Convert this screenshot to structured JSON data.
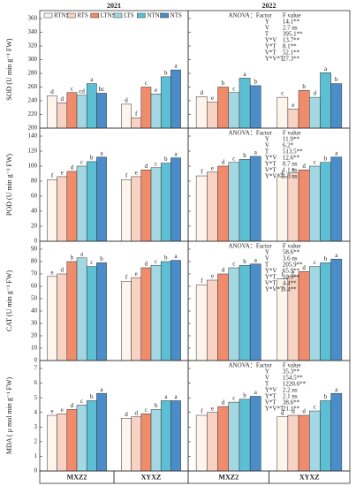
{
  "chart_data": [
    {
      "type": "bar",
      "title": "2021",
      "ylabel": "SOD (U min g⁻¹ FW)",
      "ylim": [
        200,
        360
      ],
      "yticks": [
        200,
        220,
        240,
        260,
        280,
        300,
        320,
        340,
        360
      ],
      "series": [
        {
          "name": "RTNS",
          "color": "#fdf4ec",
          "values": [
            247,
            235
          ],
          "letters": [
            "d",
            "d"
          ]
        },
        {
          "name": "RTS",
          "color": "#f8d2c2",
          "values": [
            237,
            215
          ],
          "letters": [
            "d",
            "f"
          ]
        },
        {
          "name": "LTNS",
          "color": "#f08b6c",
          "values": [
            252,
            260
          ],
          "letters": [
            "c",
            "c"
          ]
        },
        {
          "name": "LTS",
          "color": "#a3d8e2",
          "values": [
            248,
            250
          ],
          "letters": [
            "cd",
            "e"
          ]
        },
        {
          "name": "NTNS",
          "color": "#5cbfd3",
          "values": [
            265,
            275
          ],
          "letters": [
            "a",
            "b"
          ]
        },
        {
          "name": "NTS",
          "color": "#4a8dc8",
          "values": [
            251,
            285
          ],
          "letters": [
            "bc",
            "a"
          ]
        }
      ]
    },
    {
      "type": "bar",
      "title": "2022",
      "ylim": [
        200,
        360
      ],
      "yticks": [
        200,
        220,
        240,
        260,
        280,
        300,
        320,
        340,
        360
      ],
      "series": [
        {
          "color": "#fdf4ec",
          "values": [
            246,
            245
          ],
          "letters": [
            "d",
            "c"
          ]
        },
        {
          "color": "#f8d2c2",
          "values": [
            238,
            228
          ],
          "letters": [
            "e",
            "e"
          ]
        },
        {
          "color": "#f08b6c",
          "values": [
            260,
            255
          ],
          "letters": [
            "b",
            "b"
          ]
        },
        {
          "color": "#a3d8e2",
          "values": [
            252,
            245
          ],
          "letters": [
            "c",
            "d"
          ]
        },
        {
          "color": "#5cbfd3",
          "values": [
            273,
            281
          ],
          "letters": [
            "a",
            "a"
          ]
        },
        {
          "color": "#4a8dc8",
          "values": [
            262,
            265
          ],
          "letters": [
            "b",
            "b"
          ]
        }
      ],
      "anova": {
        "title": "ANOVA：",
        "header": [
          "Factor",
          "F value"
        ],
        "rows": [
          [
            "Y",
            "14.1**"
          ],
          [
            "V",
            "2.7 ns"
          ],
          [
            "T",
            "395.1**"
          ],
          [
            "Y*V",
            "13.7**"
          ],
          [
            "Y*T",
            "8.1**"
          ],
          [
            "V*T",
            "52.1**"
          ],
          [
            "Y*V*T",
            "27.3**"
          ]
        ]
      }
    },
    {
      "type": "bar",
      "ylabel": "POD (U min g⁻¹ FW)",
      "ylim": [
        0,
        140
      ],
      "yticks": [
        0,
        20,
        40,
        60,
        80,
        100,
        120,
        140
      ],
      "series": [
        {
          "color": "#fdf4ec",
          "values": [
            82,
            82
          ],
          "letters": [
            "f",
            "f"
          ]
        },
        {
          "color": "#f8d2c2",
          "values": [
            86,
            86
          ],
          "letters": [
            "e",
            "e"
          ]
        },
        {
          "color": "#f08b6c",
          "values": [
            93,
            95
          ],
          "letters": [
            "d",
            "d"
          ]
        },
        {
          "color": "#a3d8e2",
          "values": [
            100,
            98
          ],
          "letters": [
            "c",
            "c"
          ]
        },
        {
          "color": "#5cbfd3",
          "values": [
            106,
            104
          ],
          "letters": [
            "b",
            "b"
          ]
        },
        {
          "color": "#4a8dc8",
          "values": [
            112,
            111
          ],
          "letters": [
            "a",
            "a"
          ]
        }
      ]
    },
    {
      "type": "bar",
      "ylim": [
        0,
        140
      ],
      "yticks": [
        0,
        20,
        40,
        60,
        80,
        100,
        120,
        140
      ],
      "series": [
        {
          "color": "#fdf4ec",
          "values": [
            87,
            86
          ],
          "letters": [
            "f",
            "f"
          ]
        },
        {
          "color": "#f8d2c2",
          "values": [
            92,
            91
          ],
          "letters": [
            "e",
            "e"
          ]
        },
        {
          "color": "#f08b6c",
          "values": [
            100,
            95
          ],
          "letters": [
            "d",
            "d"
          ]
        },
        {
          "color": "#a3d8e2",
          "values": [
            105,
            100
          ],
          "letters": [
            "c",
            "c"
          ]
        },
        {
          "color": "#5cbfd3",
          "values": [
            109,
            105
          ],
          "letters": [
            "b",
            "b"
          ]
        },
        {
          "color": "#4a8dc8",
          "values": [
            113,
            112
          ],
          "letters": [
            "a",
            "a"
          ]
        }
      ],
      "anova": {
        "title": "ANOVA：",
        "header": [
          "Factor",
          "F value"
        ],
        "rows": [
          [
            "Y",
            "11.9**"
          ],
          [
            "V",
            "6.2*"
          ],
          [
            "T",
            "513.5**"
          ],
          [
            "Y*V",
            "12.6**"
          ],
          [
            "Y*T",
            "0.7 ns"
          ],
          [
            "V*T",
            "1.1 ns"
          ],
          [
            "Y*V*T",
            "1.3 ns"
          ]
        ]
      }
    },
    {
      "type": "bar",
      "ylabel": "CAT (U min g⁻¹ FW)",
      "ylim": [
        0,
        90
      ],
      "yticks": [
        0,
        10,
        20,
        30,
        40,
        50,
        60,
        70,
        80,
        90
      ],
      "series": [
        {
          "color": "#fdf4ec",
          "values": [
            68,
            64
          ],
          "letters": [
            "e",
            "f"
          ]
        },
        {
          "color": "#f8d2c2",
          "values": [
            70,
            67
          ],
          "letters": [
            "d",
            "e"
          ]
        },
        {
          "color": "#f08b6c",
          "values": [
            80,
            75
          ],
          "letters": [
            "b",
            "d"
          ]
        },
        {
          "color": "#a3d8e2",
          "values": [
            83,
            77
          ],
          "letters": [
            "a",
            "c"
          ]
        },
        {
          "color": "#5cbfd3",
          "values": [
            76,
            80
          ],
          "letters": [
            "c",
            "b"
          ]
        },
        {
          "color": "#4a8dc8",
          "values": [
            79,
            81
          ],
          "letters": [
            "b",
            "a"
          ]
        }
      ]
    },
    {
      "type": "bar",
      "ylim": [
        0,
        90
      ],
      "yticks": [
        0,
        10,
        20,
        30,
        40,
        50,
        60,
        70,
        80,
        90
      ],
      "series": [
        {
          "color": "#fdf4ec",
          "values": [
            61,
            66
          ],
          "letters": [
            "f",
            "f"
          ]
        },
        {
          "color": "#f8d2c2",
          "values": [
            65,
            68
          ],
          "letters": [
            "e",
            "e"
          ]
        },
        {
          "color": "#f08b6c",
          "values": [
            70,
            72
          ],
          "letters": [
            "d",
            "d"
          ]
        },
        {
          "color": "#a3d8e2",
          "values": [
            75,
            76
          ],
          "letters": [
            "c",
            "c"
          ]
        },
        {
          "color": "#5cbfd3",
          "values": [
            77,
            79
          ],
          "letters": [
            "b",
            "b"
          ]
        },
        {
          "color": "#4a8dc8",
          "values": [
            78,
            82
          ],
          "letters": [
            "a",
            "a"
          ]
        }
      ],
      "anova": {
        "title": "ANOVA：",
        "header": [
          "Factor",
          "F value"
        ],
        "rows": [
          [
            "Y",
            "58.6**"
          ],
          [
            "V",
            "3.6 ns"
          ],
          [
            "T",
            "205.9**"
          ],
          [
            "Y*V",
            "65.9**"
          ],
          [
            "Y*T",
            "10.9**"
          ],
          [
            "V*T",
            "4.4**"
          ],
          [
            "Y*V*T",
            "9.4**"
          ]
        ]
      }
    },
    {
      "type": "bar",
      "ylabel": "MDA ( μ mol min g⁻¹ FW)",
      "categories": [
        "MXZ2",
        "XYXZ"
      ],
      "ylim": [
        0,
        7
      ],
      "yticks": [
        0,
        1,
        2,
        3,
        4,
        5,
        6,
        7
      ],
      "series": [
        {
          "color": "#fdf4ec",
          "values": [
            3.8,
            3.6
          ],
          "letters": [
            "e",
            "d"
          ]
        },
        {
          "color": "#f8d2c2",
          "values": [
            3.9,
            3.7
          ],
          "letters": [
            "e",
            "d"
          ]
        },
        {
          "color": "#f08b6c",
          "values": [
            4.2,
            3.9
          ],
          "letters": [
            "d",
            "c"
          ]
        },
        {
          "color": "#a3d8e2",
          "values": [
            4.5,
            4.2
          ],
          "letters": [
            "c",
            "b"
          ]
        },
        {
          "color": "#5cbfd3",
          "values": [
            4.8,
            4.8
          ],
          "letters": [
            "b",
            "a"
          ]
        },
        {
          "color": "#4a8dc8",
          "values": [
            5.3,
            4.8
          ],
          "letters": [
            "a",
            "a"
          ]
        }
      ]
    },
    {
      "type": "bar",
      "categories": [
        "MXZ2",
        "XYXZ"
      ],
      "ylim": [
        0,
        7
      ],
      "yticks": [
        0,
        1,
        2,
        3,
        4,
        5,
        6,
        7
      ],
      "series": [
        {
          "color": "#fdf4ec",
          "values": [
            3.8,
            3.7
          ],
          "letters": [
            "f",
            "d"
          ]
        },
        {
          "color": "#f8d2c2",
          "values": [
            4.0,
            3.8
          ],
          "letters": [
            "e",
            "d"
          ]
        },
        {
          "color": "#f08b6c",
          "values": [
            4.4,
            3.8
          ],
          "letters": [
            "d",
            "d"
          ]
        },
        {
          "color": "#a3d8e2",
          "values": [
            4.7,
            4.1
          ],
          "letters": [
            "c",
            "c"
          ]
        },
        {
          "color": "#5cbfd3",
          "values": [
            4.9,
            4.8
          ],
          "letters": [
            "b",
            "b"
          ]
        },
        {
          "color": "#4a8dc8",
          "values": [
            5.1,
            5.3
          ],
          "letters": [
            "a",
            "a"
          ]
        }
      ],
      "anova": {
        "title": "ANOVA：",
        "header": [
          "Factor",
          "F value"
        ],
        "rows": [
          [
            "Y",
            "35.3**"
          ],
          [
            "V",
            "154.5**"
          ],
          [
            "T",
            "1220.6**"
          ],
          [
            "Y*V",
            "2.2 ns"
          ],
          [
            "Y*T",
            "2.1 ns"
          ],
          [
            "V*T",
            "38.6**"
          ],
          [
            "Y*V*T",
            "21.1**"
          ]
        ]
      }
    }
  ]
}
